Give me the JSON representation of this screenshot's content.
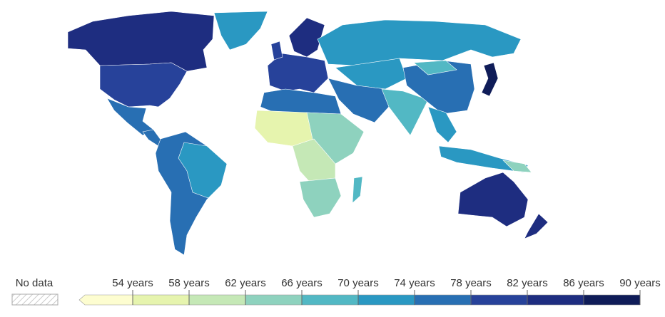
{
  "legend": {
    "no_data_label": "No data",
    "ticks": [
      {
        "value": 54,
        "label": "54 years"
      },
      {
        "value": 58,
        "label": "58 years"
      },
      {
        "value": 62,
        "label": "62 years"
      },
      {
        "value": 66,
        "label": "66 years"
      },
      {
        "value": 70,
        "label": "70 years"
      },
      {
        "value": 74,
        "label": "74 years"
      },
      {
        "value": 78,
        "label": "78 years"
      },
      {
        "value": 82,
        "label": "82 years"
      },
      {
        "value": 86,
        "label": "86 years"
      },
      {
        "value": 90,
        "label": "90 years"
      }
    ],
    "colors": [
      "#fdfdd0",
      "#e6f4ae",
      "#c5e8b6",
      "#8ed2be",
      "#52b8c4",
      "#2a98c2",
      "#286fb3",
      "#27429a",
      "#1e2d80",
      "#0f1c58"
    ]
  }
}
